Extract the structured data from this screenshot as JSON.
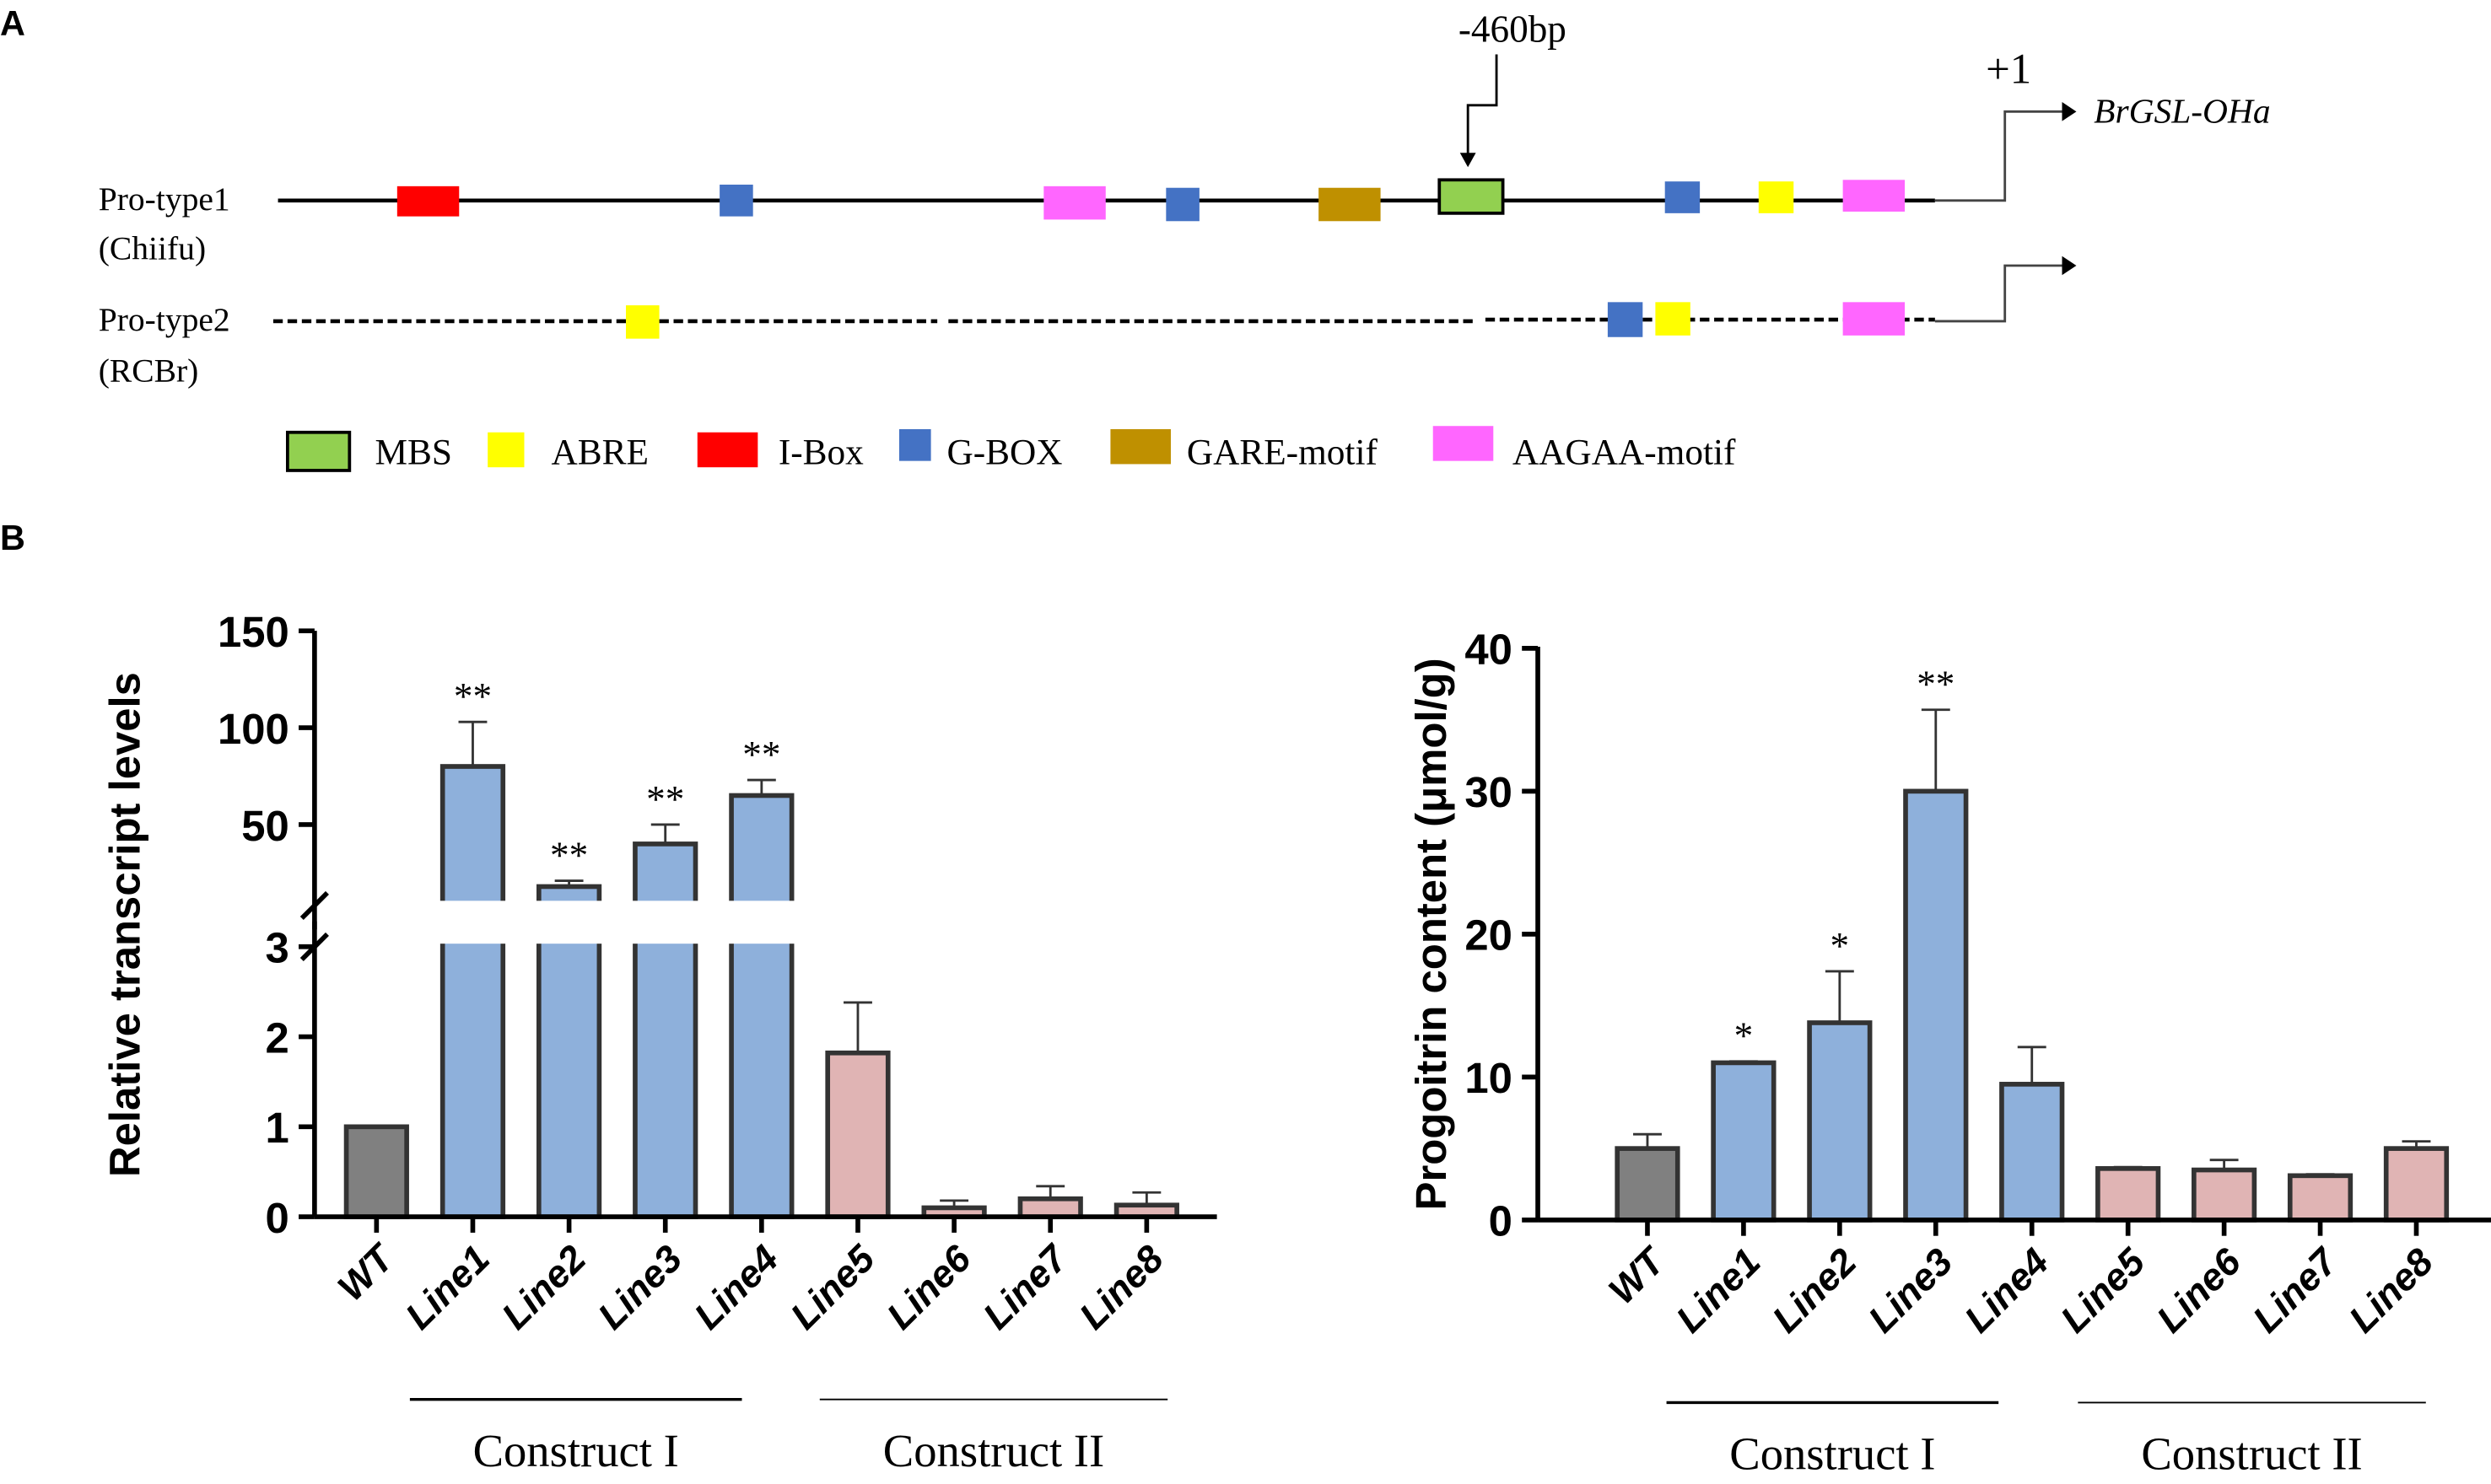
{
  "panel_a": {
    "label": "A",
    "row1_name": "Pro-type1",
    "row1_sub": "(Chiifu)",
    "row2_name": "Pro-type2",
    "row2_sub": "(RCBr)",
    "marker_label": "-460bp",
    "tss_label": "+1",
    "gene_label": "BrGSL-OHa",
    "row1_motifs": [
      "I-Box",
      "G-BOX",
      "AAGAA-motif",
      "G-BOX",
      "GARE-motif",
      "MBS",
      "G-BOX",
      "ABRE",
      "AAGAA-motif"
    ],
    "row2_motifs": [
      "ABRE",
      "G-BOX",
      "ABRE",
      "AAGAA-motif"
    ],
    "legend": [
      {
        "label": "MBS",
        "color": "#92d050"
      },
      {
        "label": "ABRE",
        "color": "#ffff00"
      },
      {
        "label": "I-Box",
        "color": "#ff0000"
      },
      {
        "label": "G-BOX",
        "color": "#4472c4"
      },
      {
        "label": "GARE-motif",
        "color": "#bf9000"
      },
      {
        "label": "AAGAA-motif",
        "color": "#ff66ff"
      }
    ]
  },
  "panel_b": {
    "label": "B"
  },
  "chart_data": [
    {
      "type": "bar",
      "title": "",
      "ylabel": "Relative transcript levels",
      "categories": [
        "WT",
        "Line1",
        "Line2",
        "Line3",
        "Line4",
        "Line5",
        "Line6",
        "Line7",
        "Line8"
      ],
      "values": [
        1.0,
        80,
        18,
        40,
        65,
        1.82,
        0.1,
        0.2,
        0.13
      ],
      "error_upper": [
        1.0,
        103,
        21,
        50,
        73,
        2.38,
        0.18,
        0.34,
        0.27
      ],
      "significance": [
        "",
        "**",
        "**",
        "**",
        "**",
        "",
        "",
        "",
        ""
      ],
      "groups": [
        "control",
        "construct1",
        "construct1",
        "construct1",
        "construct1",
        "construct2",
        "construct2",
        "construct2",
        "construct2"
      ],
      "axis_break": {
        "lower_range": [
          0,
          3
        ],
        "upper_range": [
          15,
          150
        ]
      },
      "lower_ticks": [
        "0",
        "1",
        "2",
        "3"
      ],
      "upper_ticks": [
        "50",
        "100",
        "150"
      ],
      "group_labels": [
        "Construct I",
        "Construct II"
      ]
    },
    {
      "type": "bar",
      "title": "",
      "ylabel": "Progoitrin content (μmol/g)",
      "categories": [
        "WT",
        "Line1",
        "Line2",
        "Line3",
        "Line4",
        "Line5",
        "Line6",
        "Line7",
        "Line8"
      ],
      "values": [
        5.0,
        11.0,
        13.8,
        30.0,
        9.5,
        3.6,
        3.5,
        3.1,
        5.0
      ],
      "error_upper": [
        6.0,
        11.1,
        17.4,
        35.7,
        12.1,
        3.7,
        4.2,
        3.2,
        5.5
      ],
      "significance": [
        "",
        "*",
        "*",
        "**",
        "",
        "",
        "",
        "",
        ""
      ],
      "groups": [
        "control",
        "construct1",
        "construct1",
        "construct1",
        "construct1",
        "construct2",
        "construct2",
        "construct2",
        "construct2"
      ],
      "ylim": [
        0,
        40
      ],
      "ticks": [
        "0",
        "10",
        "20",
        "30",
        "40"
      ],
      "group_labels": [
        "Construct I",
        "Construct II"
      ]
    }
  ],
  "colors": {
    "control": "#808080",
    "construct1": "#8eb0db",
    "construct2": "#e0b4b4",
    "outline": "#333333"
  }
}
